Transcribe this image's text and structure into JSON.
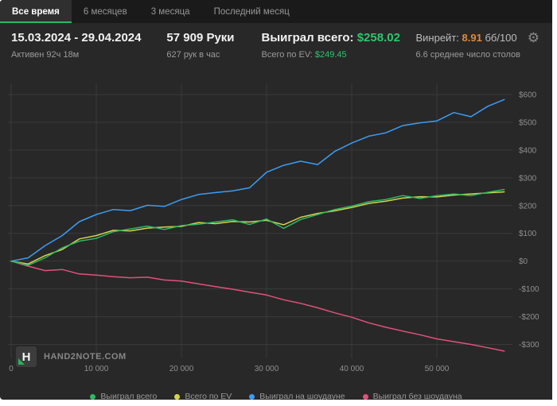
{
  "tabs": [
    {
      "label": "Все время",
      "active": true
    },
    {
      "label": "6 месяцев",
      "active": false
    },
    {
      "label": "3 месяца",
      "active": false
    },
    {
      "label": "Последний месяц",
      "active": false
    }
  ],
  "header": {
    "date_range": "15.03.2024 - 29.04.2024",
    "active_time": "Активен 92ч 18м",
    "hands": "57 909 Руки",
    "hands_per_hour": "627 рук в час",
    "won_label": "Выиграл всего:",
    "won_value": "$258.02",
    "ev_label": "Всего по EV:",
    "ev_value": "$249.45",
    "winrate_label": "Винрейт:",
    "winrate_value": "8.91",
    "winrate_unit": "бб/100",
    "avg_tables": "6.6 среднее число столов",
    "gear_icon": "⚙"
  },
  "logo": {
    "mark": "H",
    "text": "HAND2NOTE.COM"
  },
  "colors": {
    "background": "#282828",
    "tabbar": "#1a1a1a",
    "accent_green": "#2bb961",
    "value_green": "#2fc56d",
    "winrate_orange": "#e08a3c",
    "grid": "#3a3a3a",
    "tick_text": "#8f8f8f"
  },
  "chart_data": {
    "type": "line",
    "title": "",
    "xlabel": "",
    "ylabel": "",
    "grid": true,
    "legend_position": "bottom",
    "x_range": [
      0,
      58500
    ],
    "y_range": [
      -350,
      640
    ],
    "x_ticks": [
      0,
      10000,
      20000,
      30000,
      40000,
      50000
    ],
    "x_tick_labels": [
      "0",
      "10 000",
      "20 000",
      "30 000",
      "40 000",
      "50 000"
    ],
    "y_ticks": [
      600,
      500,
      400,
      300,
      200,
      100,
      0,
      -100,
      -200,
      -300
    ],
    "y_tick_labels": [
      "$600",
      "$500",
      "$400",
      "$300",
      "$200",
      "$100",
      "$0",
      "-$100",
      "-$200",
      "-$300"
    ],
    "x": [
      0,
      2000,
      4000,
      6000,
      8000,
      10000,
      12000,
      14000,
      16000,
      18000,
      20000,
      22000,
      24000,
      26000,
      28000,
      30000,
      32000,
      34000,
      36000,
      38000,
      40000,
      42000,
      44000,
      46000,
      48000,
      50000,
      52000,
      54000,
      56000,
      57909
    ],
    "series": [
      {
        "name": "Выиграл всего",
        "color": "#2eb862",
        "values": [
          0,
          -15,
          12,
          48,
          72,
          82,
          106,
          116,
          126,
          114,
          128,
          133,
          141,
          149,
          132,
          152,
          118,
          150,
          168,
          186,
          198,
          214,
          222,
          236,
          226,
          236,
          242,
          236,
          248,
          258.02
        ]
      },
      {
        "name": "Всего по EV",
        "color": "#d4d44f",
        "values": [
          0,
          -10,
          20,
          42,
          80,
          92,
          111,
          109,
          119,
          123,
          125,
          139,
          135,
          143,
          141,
          147,
          131,
          158,
          172,
          181,
          193,
          208,
          216,
          227,
          232,
          231,
          238,
          242,
          246,
          249.45
        ]
      },
      {
        "name": "Выиграл на шоудауне",
        "color": "#3b9cf5",
        "values": [
          0,
          12,
          56,
          92,
          142,
          168,
          186,
          182,
          201,
          197,
          222,
          240,
          247,
          253,
          264,
          320,
          345,
          360,
          348,
          395,
          425,
          450,
          462,
          488,
          498,
          505,
          535,
          520,
          558,
          582
        ]
      },
      {
        "name": "Выиграл без шоудауна",
        "color": "#e1517c",
        "values": [
          0,
          -18,
          -34,
          -30,
          -46,
          -50,
          -56,
          -60,
          -58,
          -68,
          -72,
          -82,
          -92,
          -101,
          -112,
          -122,
          -139,
          -152,
          -168,
          -186,
          -202,
          -222,
          -238,
          -252,
          -265,
          -280,
          -290,
          -300,
          -312,
          -324
        ]
      }
    ]
  }
}
